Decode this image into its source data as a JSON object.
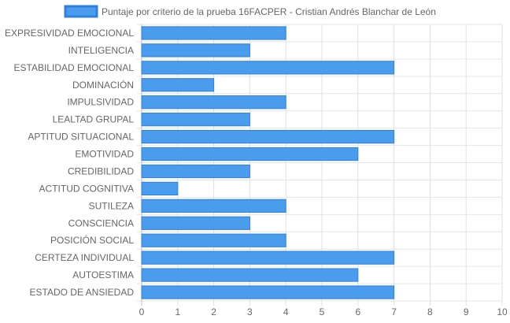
{
  "chart_data": {
    "type": "bar",
    "orientation": "horizontal",
    "categories": [
      "EXPRESIVIDAD EMOCIONAL",
      "INTELIGENCIA",
      "ESTABILIDAD EMOCIONAL",
      "DOMINACIÓN",
      "IMPULSIVIDAD",
      "LEALTAD GRUPAL",
      "APTITUD SITUACIONAL",
      "EMOTIVIDAD",
      "CREDIBILIDAD",
      "ACTITUD COGNITIVA",
      "SUTILEZA",
      "CONSCIENCIA",
      "POSICIÓN SOCIAL",
      "CERTEZA INDIVIDUAL",
      "AUTOESTIMA",
      "ESTADO DE ANSIEDAD"
    ],
    "series": [
      {
        "name": "Puntaje por criterio de la prueba 16FACPER - Cristian Andrés Blanchar de León",
        "values": [
          4,
          3,
          7,
          2,
          4,
          3,
          7,
          6,
          3,
          1,
          4,
          3,
          4,
          7,
          6,
          7
        ],
        "color": "#4a9ced",
        "border_color": "#2f7fe0"
      }
    ],
    "xlim": [
      0,
      10
    ],
    "x_ticks": [
      "0",
      "1",
      "2",
      "3",
      "4",
      "5",
      "6",
      "7",
      "8",
      "9",
      "10"
    ],
    "grid": true,
    "legend_position": "top"
  }
}
